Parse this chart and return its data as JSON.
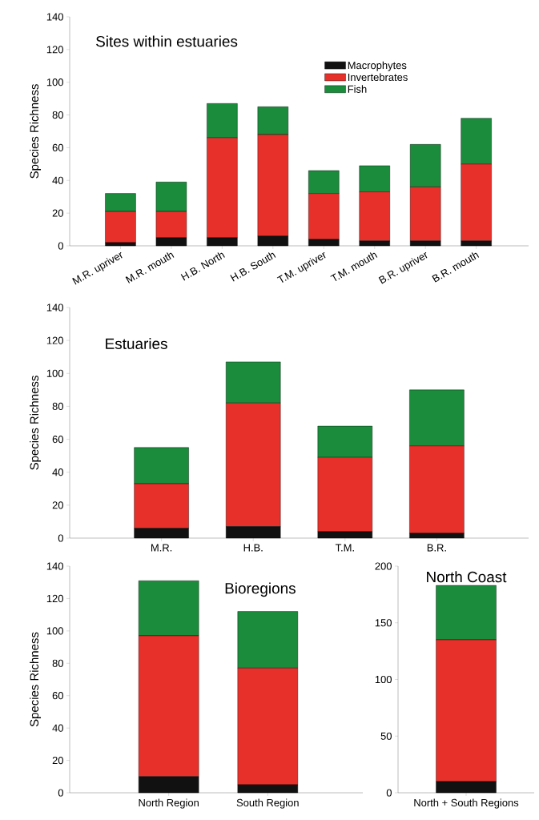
{
  "chart_data": [
    {
      "type": "bar",
      "stacked": true,
      "title": "Sites within estuaries",
      "ylabel": "Species Richness",
      "legend": "top right",
      "categories": [
        "M.R. upriver",
        "M.R. mouth",
        "H.B. North",
        "H.B. South",
        "T.M. upriver",
        "T.M. mouth",
        "B.R. upriver",
        "B.R. mouth"
      ],
      "ylim": [
        0,
        140
      ],
      "yticks": [
        0,
        20,
        40,
        60,
        80,
        100,
        120,
        140
      ],
      "series": [
        {
          "name": "Macrophytes",
          "color": "#111111",
          "values": [
            2,
            5,
            5,
            6,
            4,
            3,
            3,
            3
          ]
        },
        {
          "name": "Invertebrates",
          "color": "#e8302a",
          "values": [
            19,
            16,
            61,
            62,
            28,
            30,
            33,
            47
          ]
        },
        {
          "name": "Fish",
          "color": "#1a8c3c",
          "values": [
            11,
            18,
            21,
            17,
            14,
            16,
            26,
            28
          ]
        }
      ]
    },
    {
      "type": "bar",
      "stacked": true,
      "title": "Estuaries",
      "ylabel": "Species Richness",
      "categories": [
        "M.R.",
        "H.B.",
        "T.M.",
        "B.R."
      ],
      "ylim": [
        0,
        140
      ],
      "yticks": [
        0,
        20,
        40,
        60,
        80,
        100,
        120,
        140
      ],
      "series": [
        {
          "color": "#111111",
          "values": [
            6,
            7,
            4,
            3
          ]
        },
        {
          "color": "#e8302a",
          "values": [
            27,
            75,
            45,
            53
          ]
        },
        {
          "color": "#1a8c3c",
          "values": [
            22,
            25,
            19,
            34
          ]
        }
      ]
    },
    {
      "type": "bar",
      "stacked": true,
      "title": "Bioregions",
      "ylabel": "Species Richness",
      "categories": [
        "North Region",
        "South Region"
      ],
      "ylim": [
        0,
        140
      ],
      "yticks": [
        0,
        20,
        40,
        60,
        80,
        100,
        120,
        140
      ],
      "series": [
        {
          "color": "#111111",
          "values": [
            10,
            5
          ]
        },
        {
          "color": "#e8302a",
          "values": [
            87,
            72
          ]
        },
        {
          "color": "#1a8c3c",
          "values": [
            34,
            35
          ]
        }
      ]
    },
    {
      "type": "bar",
      "stacked": true,
      "title": "North Coast",
      "categories": [
        "North + South Regions"
      ],
      "ylim": [
        0,
        200
      ],
      "yticks": [
        0,
        50,
        100,
        150,
        200
      ],
      "series": [
        {
          "color": "#111111",
          "values": [
            10
          ]
        },
        {
          "color": "#e8302a",
          "values": [
            125
          ]
        },
        {
          "color": "#1a8c3c",
          "values": [
            48
          ]
        }
      ]
    }
  ]
}
